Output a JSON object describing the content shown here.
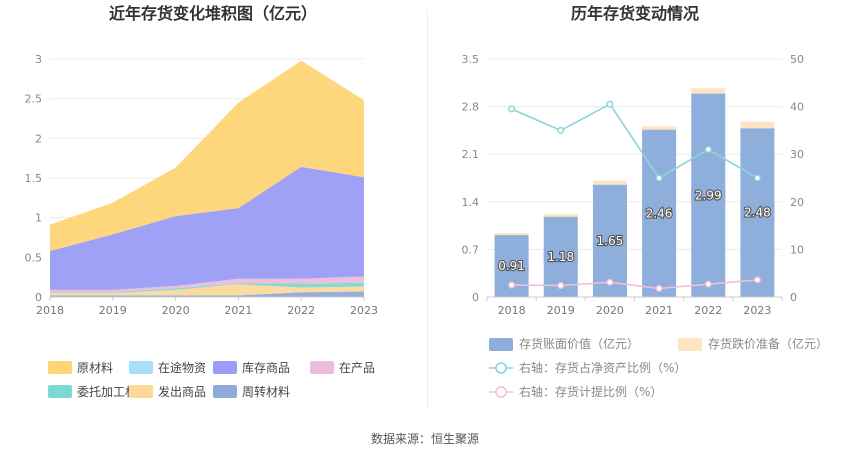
{
  "source": {
    "label": "数据来源：",
    "value": "恒生聚源"
  },
  "chart_data": [
    {
      "type": "area",
      "stacked": true,
      "title": "近年存货变化堆积图（亿元）",
      "x": [
        "2018",
        "2019",
        "2020",
        "2021",
        "2022",
        "2023"
      ],
      "ylim": [
        0,
        3
      ],
      "yticks": [
        "0",
        "0.5",
        "1",
        "1.5",
        "2",
        "2.5",
        "3"
      ],
      "grid": true,
      "legend_position": "bottom",
      "series": [
        {
          "name": "周转材料",
          "color": "#8faadc",
          "values": [
            0.02,
            0.02,
            0.02,
            0.02,
            0.06,
            0.07
          ]
        },
        {
          "name": "发出商品",
          "color": "#fdd898",
          "values": [
            0.03,
            0.03,
            0.07,
            0.14,
            0.06,
            0.06
          ]
        },
        {
          "name": "委托加工材料",
          "color": "#7fd8d3",
          "values": [
            0.01,
            0.01,
            0.02,
            0.01,
            0.05,
            0.05
          ]
        },
        {
          "name": "在产品",
          "color": "#ecbcdc",
          "values": [
            0.03,
            0.03,
            0.03,
            0.06,
            0.06,
            0.08
          ]
        },
        {
          "name": "库存商品",
          "color": "#9a9cf7",
          "values": [
            0.49,
            0.7,
            0.88,
            0.89,
            1.41,
            1.25
          ]
        },
        {
          "name": "在途物资",
          "color": "#a9defa",
          "values": [
            0.0,
            0.0,
            0.0,
            0.0,
            0.0,
            0.0
          ]
        },
        {
          "name": "原材料",
          "color": "#fed474",
          "values": [
            0.33,
            0.4,
            0.61,
            1.33,
            1.34,
            0.97
          ]
        }
      ],
      "legend_order": [
        "原材料",
        "在途物资",
        "库存商品",
        "在产品",
        "委托加工材料",
        "发出商品",
        "周转材料"
      ]
    },
    {
      "type": "bar",
      "title": "历年存货变动情况",
      "categories": [
        "2018",
        "2019",
        "2020",
        "2021",
        "2022",
        "2023"
      ],
      "ylim": [
        0,
        3.5
      ],
      "yticks": [
        "0",
        "0.7",
        "1.4",
        "2.1",
        "2.8",
        "3.5"
      ],
      "y2lim": [
        0,
        50
      ],
      "y2ticks": [
        "0",
        "10",
        "20",
        "30",
        "40",
        "50"
      ],
      "grid": true,
      "legend_position": "bottom",
      "series": [
        {
          "name": "存货账面价值（亿元）",
          "kind": "bar",
          "axis": "left",
          "color": "#8eaedc",
          "values": [
            0.91,
            1.18,
            1.65,
            2.46,
            2.99,
            2.48
          ],
          "labels": [
            "0.91",
            "1.18",
            "1.65",
            "2.46",
            "2.99",
            "2.48"
          ]
        },
        {
          "name": "存货跌价准备（亿元）",
          "kind": "bar-stack",
          "axis": "left",
          "color": "#fde5c2",
          "values": [
            0.03,
            0.04,
            0.06,
            0.05,
            0.08,
            0.1
          ]
        },
        {
          "name": "右轴：存货占净资产比例（%）",
          "kind": "line",
          "axis": "right",
          "color": "#8ad5dc",
          "values": [
            39.5,
            35.0,
            40.5,
            25.0,
            31.0,
            25.0
          ]
        },
        {
          "name": "右轴：存货计提比例（%）",
          "kind": "line",
          "axis": "right",
          "color": "#f0bfd8",
          "values": [
            2.5,
            2.4,
            3.1,
            1.8,
            2.7,
            3.6
          ]
        }
      ]
    }
  ]
}
